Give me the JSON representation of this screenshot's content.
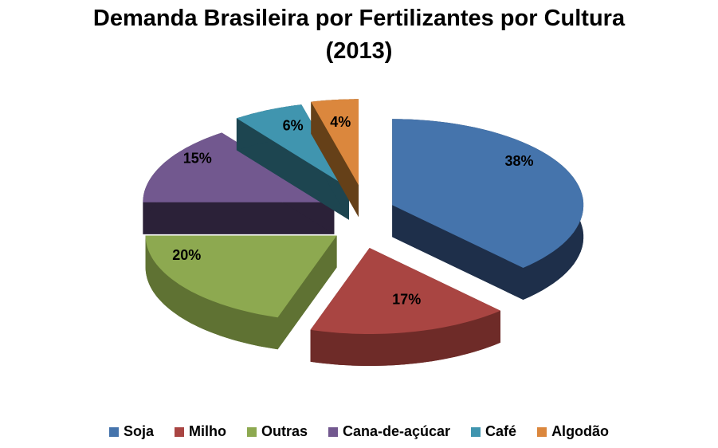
{
  "title": {
    "line1": "Demanda Brasileira por Fertilizantes por Cultura",
    "line2": "(2013)"
  },
  "chart_data": {
    "type": "pie",
    "style": "3d-exploded",
    "title": "Demanda Brasileira por Fertilizantes por Cultura (2013)",
    "unit": "%",
    "start_angle": "top",
    "direction": "clockwise",
    "legend_position": "bottom",
    "background": "#ffffff",
    "label_color": "#000000",
    "slices": [
      {
        "label": "Soja",
        "value": 38,
        "data_label": "38%",
        "color": "#4574AC",
        "side_color": "#1E2F4A"
      },
      {
        "label": "Milho",
        "value": 17,
        "data_label": "17%",
        "color": "#A94542",
        "side_color": "#6E2B28"
      },
      {
        "label": "Outras",
        "value": 20,
        "data_label": "20%",
        "color": "#8DA950",
        "side_color": "#5F7233"
      },
      {
        "label": "Cana-de-açúcar",
        "value": 15,
        "data_label": "15%",
        "color": "#72588F",
        "side_color": "#2B2138"
      },
      {
        "label": "Café",
        "value": 6,
        "data_label": "6%",
        "color": "#4095AF",
        "side_color": "#1D4550"
      },
      {
        "label": "Algodão",
        "value": 4,
        "data_label": "4%",
        "color": "#DB873D",
        "side_color": "#654018"
      }
    ]
  }
}
